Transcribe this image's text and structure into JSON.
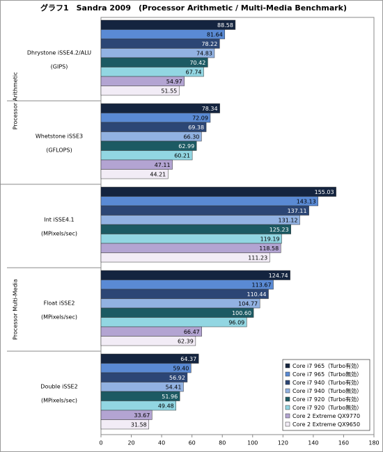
{
  "chart_data": {
    "type": "hbar",
    "title": "グラフ1　Sandra 2009　(Processor Arithmetic / Multi-Media Benchmark)",
    "groups": [
      {
        "name": "Processor Arithmetic",
        "categories": [
          [
            "Dhrystone iSSE4.2/ALU",
            "(GIPS)"
          ],
          [
            "Whetstone iSSE3",
            "(GFLOPS)"
          ]
        ]
      },
      {
        "name": "Processor Multi-Media",
        "categories": [
          [
            "Int iSSE4.1",
            "(MPixels/sec)"
          ],
          [
            "Float iSSE2",
            "(MPixels/sec)"
          ],
          [
            "Double iSSE2",
            "(MPixels/sec)"
          ]
        ]
      }
    ],
    "series": [
      {
        "name": "Core i7 965（Turbo有効）",
        "color": "#14243f",
        "values": [
          88.58,
          78.34,
          155.03,
          124.74,
          64.37
        ],
        "value_labels": [
          "88.58",
          "78.34",
          "155.03",
          "124.74",
          "64.37"
        ]
      },
      {
        "name": "Core i7 965（Turbo無効）",
        "color": "#5a8ad4",
        "values": [
          81.64,
          72.09,
          143.13,
          113.67,
          59.4
        ],
        "value_labels": [
          "81.64",
          "72.09",
          "143.13",
          "113.67",
          "59.40"
        ]
      },
      {
        "name": "Core i7 940（Turbo有効）",
        "color": "#2c4675",
        "values": [
          78.22,
          69.38,
          137.11,
          110.44,
          56.92
        ],
        "value_labels": [
          "78.22",
          "69.38",
          "137.11",
          "110.44",
          "56.92"
        ]
      },
      {
        "name": "Core i7 940（Turbo無効）",
        "color": "#92b2e2",
        "values": [
          74.83,
          66.3,
          131.12,
          104.77,
          54.41
        ],
        "value_labels": [
          "74.83",
          "66.30",
          "131.12",
          "104.77",
          "54.41"
        ]
      },
      {
        "name": "Core i7 920（Turbo有効）",
        "color": "#1c5a63",
        "values": [
          70.42,
          62.99,
          125.23,
          100.6,
          51.96
        ],
        "value_labels": [
          "70.42",
          "62.99",
          "125.23",
          "100.60",
          "51.96"
        ]
      },
      {
        "name": "Core i7 920（Turbo無効）",
        "color": "#92d6e2",
        "values": [
          67.74,
          60.21,
          119.19,
          96.09,
          49.48
        ],
        "value_labels": [
          "67.74",
          "60.21",
          "119.19",
          "96.09",
          "49.48"
        ]
      },
      {
        "name": "Core 2 Extreme QX9770",
        "color": "#b3a4d2",
        "values": [
          54.97,
          47.11,
          118.58,
          66.47,
          33.67
        ],
        "value_labels": [
          "54.97",
          "47.11",
          "118.58",
          "66.47",
          "33.67"
        ]
      },
      {
        "name": "Core 2 Extreme QX9650",
        "color": "#f2ecf6",
        "values": [
          51.55,
          44.21,
          111.23,
          62.39,
          31.58
        ],
        "value_labels": [
          "51.55",
          "44.21",
          "111.23",
          "62.39",
          "31.58"
        ]
      }
    ],
    "xlim": [
      0,
      180
    ],
    "xticks": [
      0,
      20,
      40,
      60,
      80,
      100,
      120,
      140,
      160,
      180
    ],
    "legend": "lower right"
  }
}
